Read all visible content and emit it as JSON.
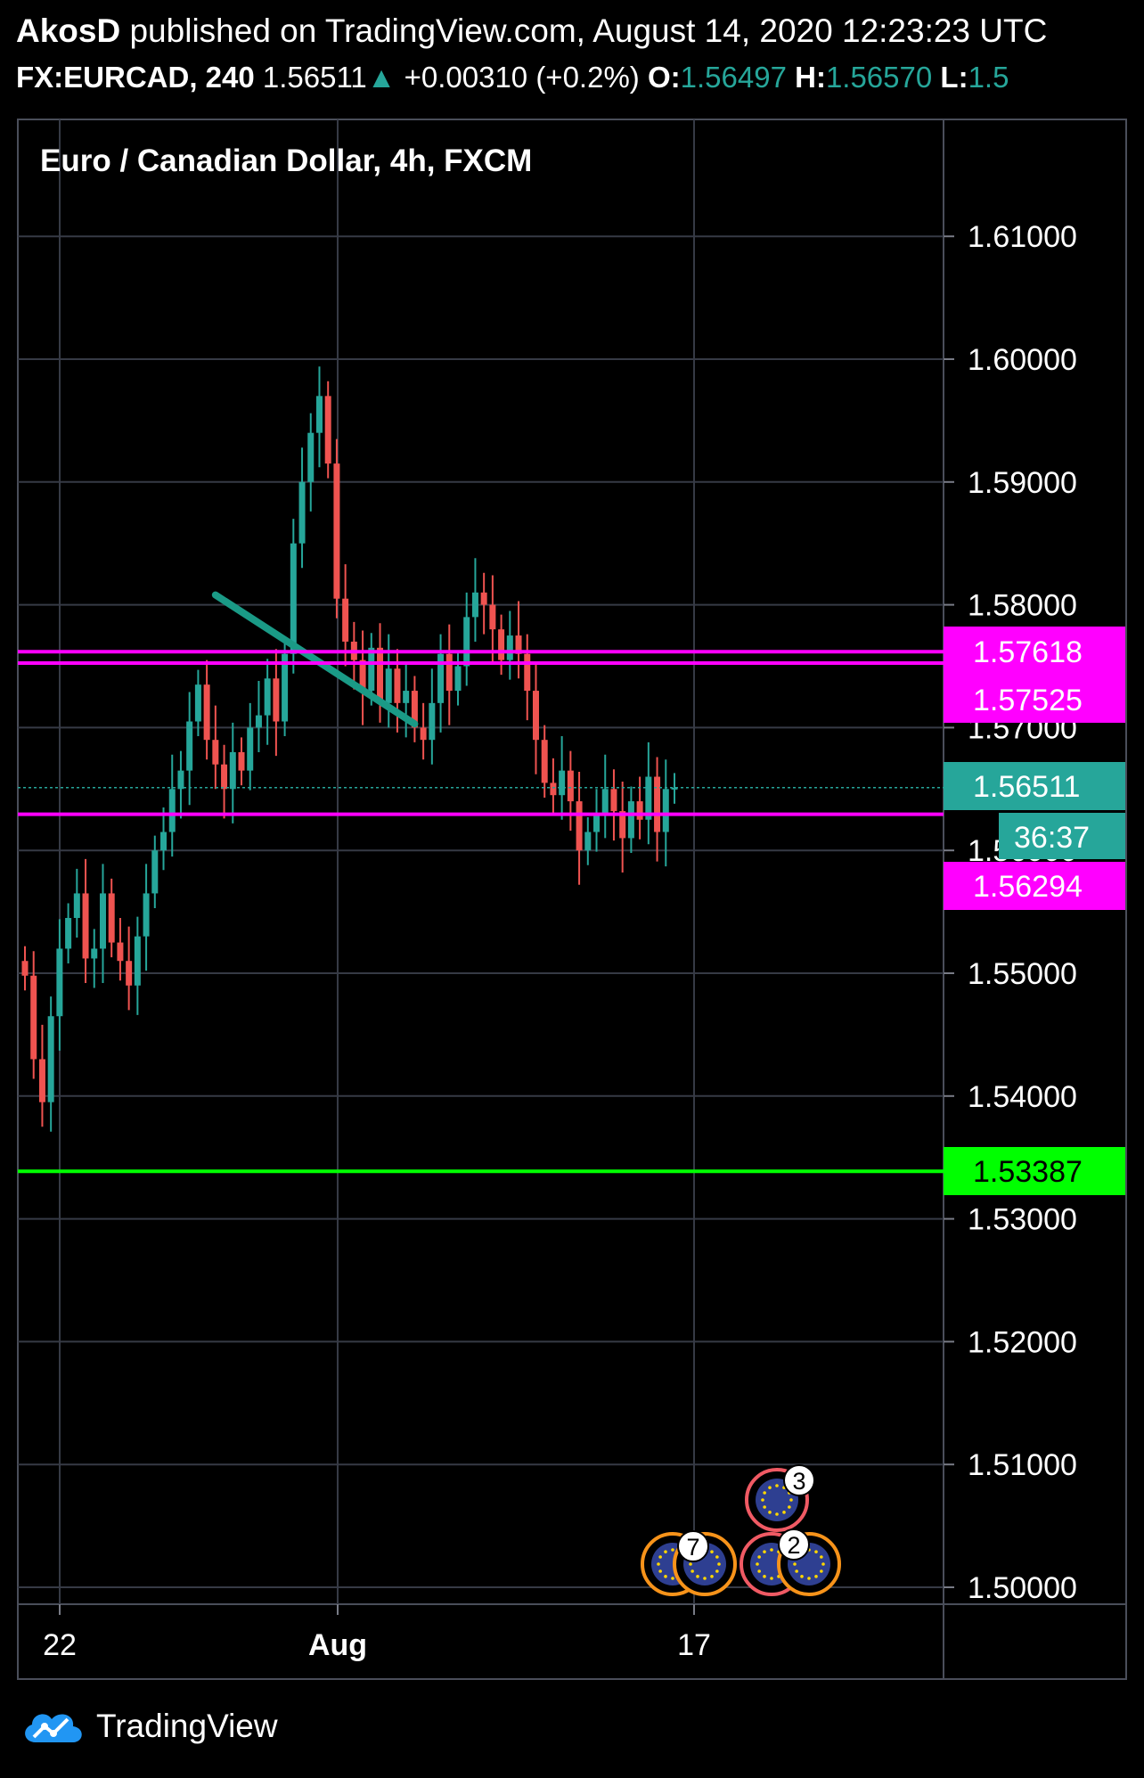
{
  "header": {
    "author": "AkosD",
    "published_text": "published on TradingView.com, August 14, 2020 12:23:23 UTC",
    "symbol": "FX:EURCAD, 240",
    "last": "1.56511",
    "change_arrow": "▲",
    "change": "+0.00310 (+0.2%)",
    "open_label": "O:",
    "open": "1.56497",
    "high_label": "H:",
    "high": "1.56570",
    "low_label": "L:",
    "low": "1.5"
  },
  "chart_title": "Euro / Canadian Dollar, 4h, FXCM",
  "footer": {
    "brand": "TradingView",
    "logo_icon": "tradingview-cloud-logo-icon"
  },
  "colors": {
    "background": "#000000",
    "grid": "#363a45",
    "up": "#26a69a",
    "down": "#ef5350",
    "magenta": "#ff00ff",
    "green_line": "#00ff00",
    "event_orange": "#f7931a",
    "event_red": "#f05a64",
    "event_blue": "#2e3f91"
  },
  "chart_data": {
    "type": "candlestick",
    "title": "Euro / Canadian Dollar, 4h, FXCM",
    "ylim": [
      1.4985,
      1.6195
    ],
    "y_ticks": [
      "1.61000",
      "1.60000",
      "1.59000",
      "1.58000",
      "1.57000",
      "1.56000",
      "1.55000",
      "1.54000",
      "1.53000",
      "1.52000",
      "1.51000",
      "1.50000"
    ],
    "x_ticks": [
      "22",
      "Aug",
      "17"
    ],
    "grid": true,
    "current_price": "1.56511",
    "countdown": "36:37",
    "horizontal_lines": [
      {
        "price": 1.57618,
        "label": "1.57618",
        "color": "magenta"
      },
      {
        "price": 1.57525,
        "label": "1.57525",
        "color": "magenta"
      },
      {
        "price": 1.56294,
        "label": "1.56294",
        "color": "magenta"
      },
      {
        "price": 1.53387,
        "label": "1.53387",
        "color": "green"
      }
    ],
    "trendline": {
      "from": [
        22,
        1.5808
      ],
      "to": [
        45,
        1.5703
      ]
    },
    "closes": [
      1.5498,
      1.543,
      1.5395,
      1.5465,
      1.552,
      1.5545,
      1.5565,
      1.5512,
      1.552,
      1.5565,
      1.5525,
      1.551,
      1.549,
      1.553,
      1.5565,
      1.56,
      1.5615,
      1.565,
      1.5665,
      1.5705,
      1.5735,
      1.569,
      1.567,
      1.565,
      1.568,
      1.5665,
      1.57,
      1.571,
      1.574,
      1.5705,
      1.576,
      1.585,
      1.59,
      1.594,
      1.597,
      1.5915,
      1.5805,
      1.577,
      1.5755,
      1.573,
      1.5765,
      1.572,
      1.5748,
      1.572,
      1.573,
      1.57,
      1.569,
      1.572,
      1.576,
      1.573,
      1.575,
      1.579,
      1.581,
      1.58,
      1.578,
      1.5755,
      1.5775,
      1.576,
      1.573,
      1.569,
      1.5655,
      1.5645,
      1.5665,
      1.564,
      1.56,
      1.5615,
      1.563,
      1.565,
      1.5632,
      1.561,
      1.564,
      1.5625,
      1.566,
      1.5615,
      1.565,
      1.5651
    ],
    "events": [
      {
        "count": "3",
        "ring": "red"
      },
      {
        "count": "7",
        "ring": "orange"
      },
      {
        "count": "2",
        "ring": "red"
      }
    ]
  }
}
